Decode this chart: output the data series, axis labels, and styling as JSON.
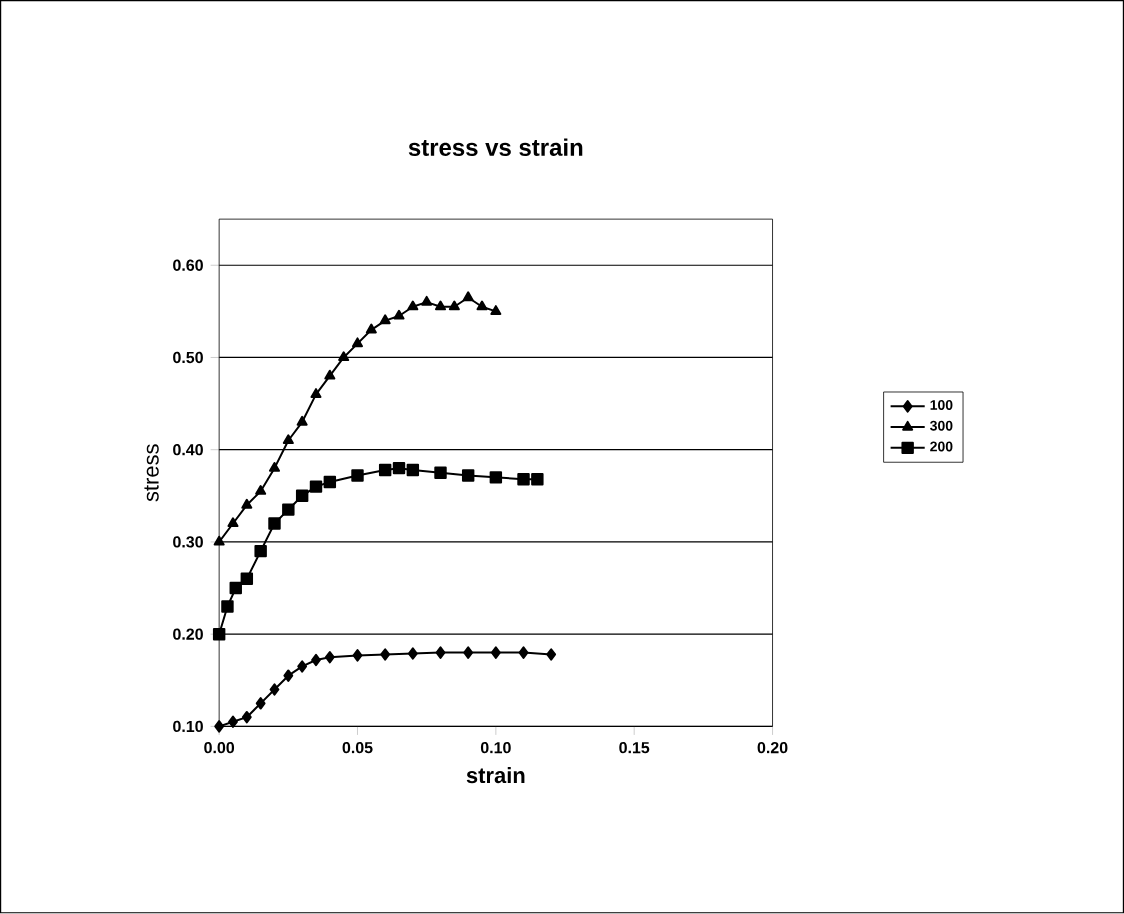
{
  "chart_data": {
    "type": "line",
    "title": "stress vs strain",
    "xlabel": "strain",
    "ylabel": "stress",
    "xlim": [
      0,
      0.2
    ],
    "xticks": [
      {
        "value": 0,
        "label": "0.00"
      },
      {
        "value": 0.05,
        "label": "0.05"
      },
      {
        "value": 0.1,
        "label": "0.10"
      },
      {
        "value": 0.15,
        "label": "0.15"
      },
      {
        "value": 0.2,
        "label": "0.20"
      }
    ],
    "ylim": [
      0.1,
      0.65
    ],
    "yticks": [
      {
        "value": 0.1,
        "label": "0.10"
      },
      {
        "value": 0.2,
        "label": "0.20"
      },
      {
        "value": 0.3,
        "label": "0.30"
      },
      {
        "value": 0.4,
        "label": "0.40"
      },
      {
        "value": 0.5,
        "label": "0.50"
      },
      {
        "value": 0.6,
        "label": "0.60"
      }
    ],
    "grid": "y",
    "legend": "right",
    "series": [
      {
        "name": "100",
        "color": "#000000",
        "marker": "diamond",
        "x": [
          0,
          0.005,
          0.01,
          0.015,
          0.02,
          0.025,
          0.03,
          0.035,
          0.04,
          0.05,
          0.06,
          0.07,
          0.08,
          0.09,
          0.1,
          0.11,
          0.12
        ],
        "values": [
          0.1,
          0.105,
          0.11,
          0.125,
          0.14,
          0.155,
          0.165,
          0.172,
          0.175,
          0.177,
          0.178,
          0.179,
          0.18,
          0.18,
          0.18,
          0.18,
          0.178
        ]
      },
      {
        "name": "300",
        "color": "#000000",
        "marker": "triangle",
        "x": [
          0,
          0.005,
          0.01,
          0.015,
          0.02,
          0.025,
          0.03,
          0.035,
          0.04,
          0.045,
          0.05,
          0.055,
          0.06,
          0.065,
          0.07,
          0.075,
          0.08,
          0.085,
          0.09,
          0.095,
          0.1
        ],
        "values": [
          0.3,
          0.32,
          0.34,
          0.355,
          0.38,
          0.41,
          0.43,
          0.46,
          0.48,
          0.5,
          0.515,
          0.53,
          0.54,
          0.545,
          0.555,
          0.56,
          0.555,
          0.555,
          0.565,
          0.555,
          0.55
        ]
      },
      {
        "name": "200",
        "color": "#000000",
        "marker": "square",
        "x": [
          0,
          0.003,
          0.006,
          0.01,
          0.015,
          0.02,
          0.025,
          0.03,
          0.035,
          0.04,
          0.05,
          0.06,
          0.065,
          0.07,
          0.08,
          0.09,
          0.1,
          0.11,
          0.115
        ],
        "values": [
          0.2,
          0.23,
          0.25,
          0.26,
          0.29,
          0.32,
          0.335,
          0.35,
          0.36,
          0.365,
          0.372,
          0.378,
          0.38,
          0.378,
          0.375,
          0.372,
          0.37,
          0.368,
          0.368
        ]
      }
    ]
  }
}
